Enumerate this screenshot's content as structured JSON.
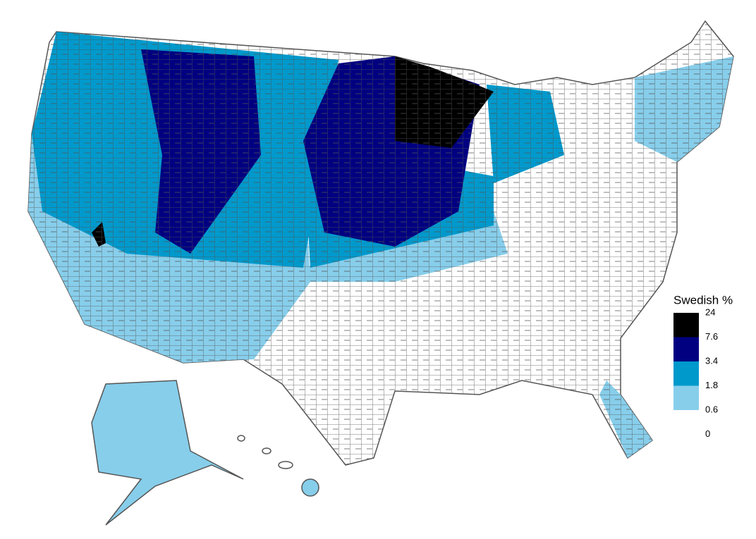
{
  "legend": {
    "title": "Swedish %",
    "breaks": [
      24,
      7.6,
      3.4,
      1.8,
      0.6,
      0
    ],
    "colors": [
      "#000000",
      "#000080",
      "#0099cc",
      "#87ceeb",
      "#ffffff"
    ]
  }
}
